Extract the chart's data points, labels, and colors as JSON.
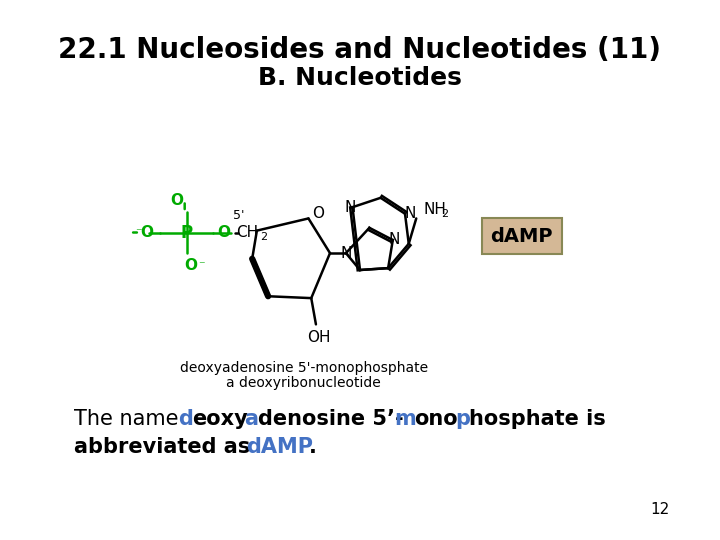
{
  "title_line1": "22.1 Nucleosides and Nucleotides (11)",
  "title_line2": "B. Nucleotides",
  "title_fontsize": 20,
  "subtitle_fontsize": 18,
  "bg_color": "#ffffff",
  "title_color": "#000000",
  "green_color": "#00aa00",
  "blue_color": "#4472c4",
  "black_color": "#000000",
  "label1": "deoxyadenosine 5'-monophosphate",
  "label2": "a deoxyribonucleotide",
  "damp_label": "dAMP",
  "damp_box_color": "#d4b896",
  "page_number": "12",
  "body_text_parts": [
    {
      "text": "The name ",
      "color": "#000000",
      "bold": false
    },
    {
      "text": "d",
      "color": "#4472c4",
      "bold": true
    },
    {
      "text": "eoxy",
      "color": "#000000",
      "bold": true
    },
    {
      "text": "a",
      "color": "#4472c4",
      "bold": true
    },
    {
      "text": "denosine 5’-",
      "color": "#000000",
      "bold": true
    },
    {
      "text": "m",
      "color": "#4472c4",
      "bold": true
    },
    {
      "text": "ono",
      "color": "#000000",
      "bold": true
    },
    {
      "text": "p",
      "color": "#4472c4",
      "bold": true
    },
    {
      "text": "hosphate is",
      "color": "#000000",
      "bold": true
    }
  ],
  "body_text_line2_parts": [
    {
      "text": "abbreviated as ",
      "color": "#000000",
      "bold": true
    },
    {
      "text": "dAMP",
      "color": "#4472c4",
      "bold": true
    },
    {
      "text": ".",
      "color": "#000000",
      "bold": true
    }
  ]
}
